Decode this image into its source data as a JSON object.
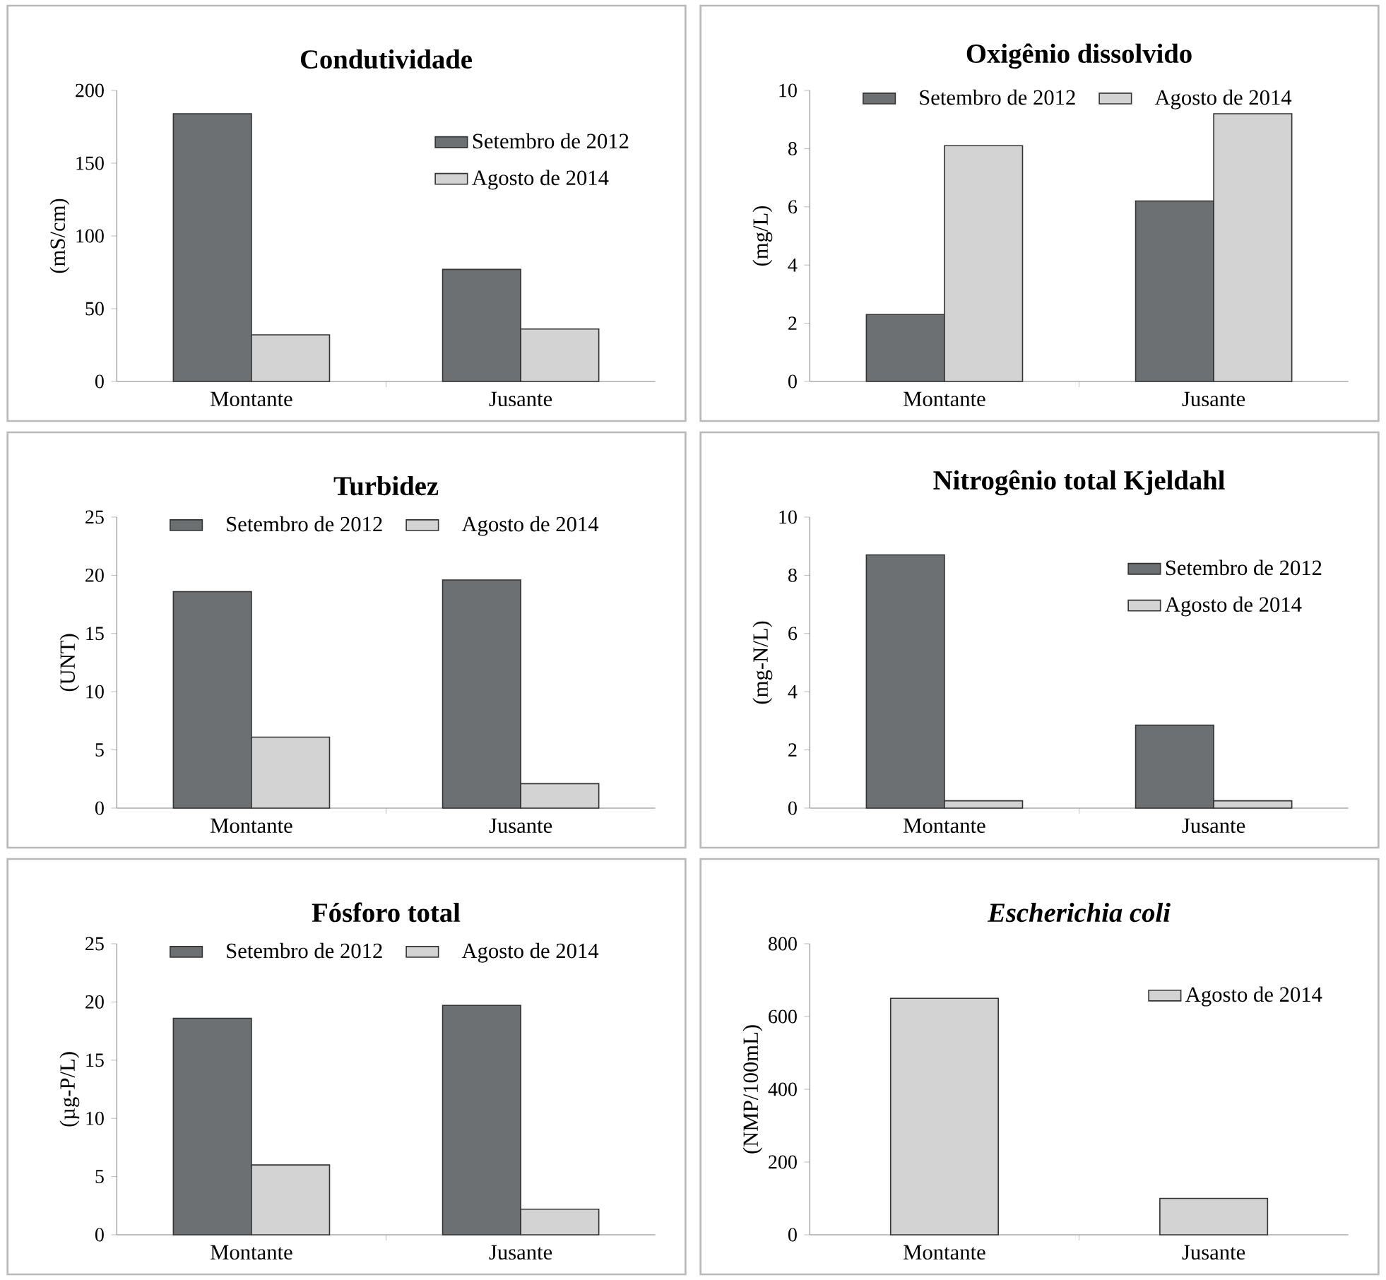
{
  "chart_data": [
    {
      "type": "bar",
      "title": "Condutividade",
      "ylabel": "(mS/cm)",
      "categories": [
        "Montante",
        "Jusante"
      ],
      "ylim": [
        0,
        200
      ],
      "yticks": [
        0,
        50,
        100,
        150,
        200
      ],
      "legend": "top right",
      "series": [
        {
          "name": "Setembro de 2012",
          "color": "#6d7072",
          "values": [
            184,
            77
          ]
        },
        {
          "name": "Agosto de 2014",
          "color": "#d3d3d3",
          "values": [
            32,
            36
          ]
        }
      ]
    },
    {
      "type": "bar",
      "title": "Oxigênio dissolvido",
      "ylabel": "(mg/L)",
      "categories": [
        "Montante",
        "Jusante"
      ],
      "ylim": [
        0,
        10
      ],
      "yticks": [
        0,
        2,
        4,
        6,
        8,
        10
      ],
      "legend": "top",
      "series": [
        {
          "name": "Setembro de 2012",
          "color": "#6d7072",
          "values": [
            2.3,
            6.2
          ]
        },
        {
          "name": "Agosto de 2014",
          "color": "#d3d3d3",
          "values": [
            8.1,
            9.2
          ]
        }
      ]
    },
    {
      "type": "bar",
      "title": "Turbidez",
      "ylabel": "(UNT)",
      "categories": [
        "Montante",
        "Jusante"
      ],
      "ylim": [
        0,
        25
      ],
      "yticks": [
        0,
        5,
        10,
        15,
        20,
        25
      ],
      "legend": "top",
      "series": [
        {
          "name": "Setembro de 2012",
          "color": "#6d7072",
          "values": [
            18.6,
            19.6
          ]
        },
        {
          "name": "Agosto de 2014",
          "color": "#d3d3d3",
          "values": [
            6.1,
            2.1
          ]
        }
      ]
    },
    {
      "type": "bar",
      "title": "Nitrogênio total Kjeldahl",
      "ylabel": "(mg-N/L)",
      "categories": [
        "Montante",
        "Jusante"
      ],
      "ylim": [
        0,
        10
      ],
      "yticks": [
        0,
        2,
        4,
        6,
        8,
        10
      ],
      "legend": "top right",
      "series": [
        {
          "name": "Setembro de 2012",
          "color": "#6d7072",
          "values": [
            8.7,
            2.85
          ]
        },
        {
          "name": "Agosto de 2014",
          "color": "#d3d3d3",
          "values": [
            0.25,
            0.25
          ]
        }
      ]
    },
    {
      "type": "bar",
      "title": "Fósforo total",
      "ylabel": "(µg-P/L)",
      "categories": [
        "Montante",
        "Jusante"
      ],
      "ylim": [
        0,
        25
      ],
      "yticks": [
        0,
        5,
        10,
        15,
        20,
        25
      ],
      "legend": "top",
      "series": [
        {
          "name": "Setembro de 2012",
          "color": "#6d7072",
          "values": [
            18.6,
            19.7
          ]
        },
        {
          "name": "Agosto de 2014",
          "color": "#d3d3d3",
          "values": [
            6.0,
            2.2
          ]
        }
      ]
    },
    {
      "type": "bar",
      "title": "*Escherichia coli*",
      "ylabel": "(NMP/100mL)",
      "categories": [
        "Montante",
        "Jusante"
      ],
      "ylim": [
        0,
        800
      ],
      "yticks": [
        0,
        200,
        400,
        600,
        800
      ],
      "legend": "top right",
      "series": [
        {
          "name": "Agosto de 2014",
          "color": "#d3d3d3",
          "values": [
            650,
            100
          ]
        }
      ]
    }
  ]
}
